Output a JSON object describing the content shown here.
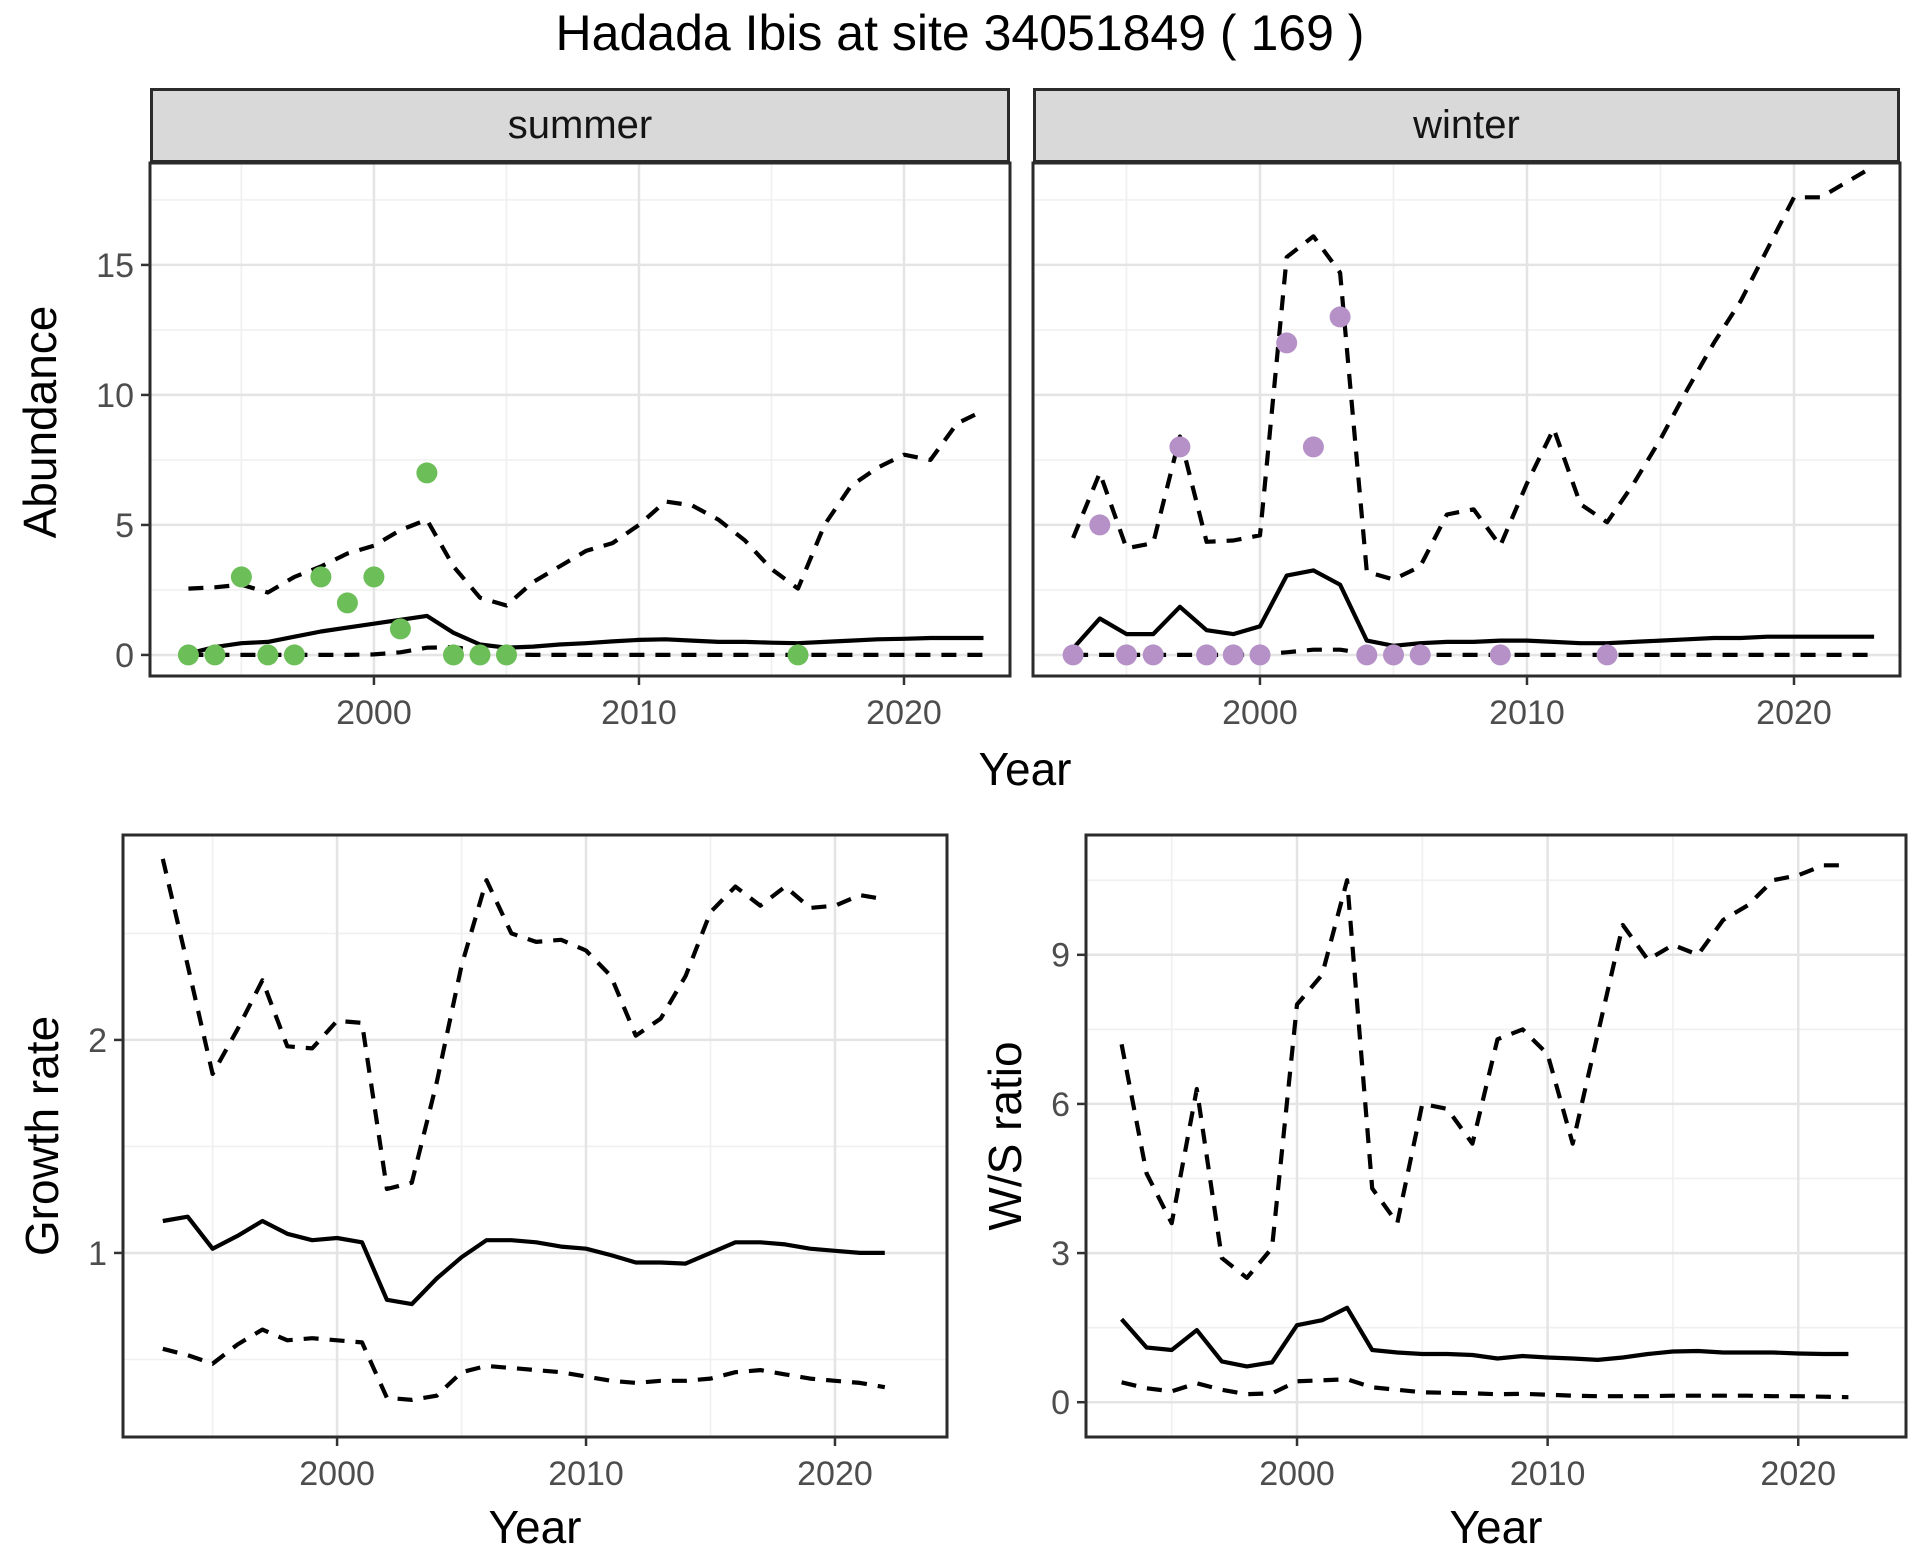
{
  "title": "Hadada Ibis at site 34051849 ( 169 )",
  "axis_titles": {
    "x": "Year",
    "y_abundance": "Abundance",
    "y_growth": "Growth rate",
    "y_ws": "W/S ratio"
  },
  "colors": {
    "summer_points": "#6CBE58",
    "winter_points": "#B591C7",
    "line": "#000000",
    "strip_fill": "#D9D9D9",
    "panel_border": "#2B2B2B",
    "tick_label": "#4D4D4D",
    "grid_major": "#E4E4E4",
    "grid_minor": "#F0F0F0"
  },
  "chart_data": {
    "type": "line",
    "title": "Hadada Ibis at site 34051849 ( 169 )",
    "xlabel": "Year",
    "legend": "none",
    "facets": [
      "summer",
      "winter"
    ],
    "panels": [
      {
        "id": "abundance-summer",
        "facet_label": "summer",
        "ylabel": "Abundance",
        "xlim": [
          1991.55,
          2024.0
        ],
        "ylim": [
          -0.81,
          18.92
        ],
        "x_major": [
          2000,
          2010,
          2020
        ],
        "x_minor": [
          1995,
          2005,
          2015
        ],
        "y_major": [
          0,
          5,
          10,
          15
        ],
        "y_minor": [
          2.5,
          7.5,
          12.5,
          17.5
        ],
        "show_y_tick_labels": true,
        "x": [
          1993,
          1994,
          1995,
          1996,
          1997,
          1998,
          1999,
          2000,
          2001,
          2002,
          2003,
          2004,
          2005,
          2006,
          2007,
          2008,
          2009,
          2010,
          2011,
          2012,
          2013,
          2014,
          2015,
          2016,
          2017,
          2018,
          2019,
          2020,
          2021,
          2022,
          2023
        ],
        "series": [
          {
            "name": "lower-ci",
            "style": "dashed",
            "values": [
              0,
              0,
              0,
              0,
              0,
              0,
              0,
              0.02,
              0.1,
              0.28,
              0.3,
              0.15,
              0.02,
              0,
              0,
              0,
              0,
              0,
              0,
              0,
              0,
              0,
              0,
              0,
              0,
              0,
              0,
              0,
              0,
              0,
              0
            ]
          },
          {
            "name": "median",
            "style": "solid",
            "values": [
              0.05,
              0.3,
              0.45,
              0.5,
              0.7,
              0.9,
              1.05,
              1.2,
              1.35,
              1.5,
              0.85,
              0.4,
              0.28,
              0.32,
              0.4,
              0.45,
              0.52,
              0.58,
              0.6,
              0.55,
              0.5,
              0.5,
              0.47,
              0.45,
              0.5,
              0.55,
              0.6,
              0.62,
              0.65,
              0.65,
              0.65
            ]
          },
          {
            "name": "upper-ci",
            "style": "dashed",
            "values": [
              2.55,
              2.6,
              2.7,
              2.4,
              3.0,
              3.4,
              3.9,
              4.2,
              4.8,
              5.2,
              3.4,
              2.2,
              1.9,
              2.8,
              3.4,
              4.0,
              4.3,
              5.0,
              5.9,
              5.75,
              5.2,
              4.4,
              3.3,
              2.55,
              5.0,
              6.5,
              7.2,
              7.7,
              7.5,
              8.9,
              9.4
            ]
          }
        ],
        "points": {
          "color_key": "summer_points",
          "x": [
            1993,
            1994,
            1995,
            1996,
            1997,
            1998,
            1999,
            2000,
            2001,
            2002,
            2003,
            2004,
            2005,
            2016
          ],
          "y": [
            0,
            0,
            3,
            0,
            0,
            3,
            2,
            3,
            1,
            7,
            0,
            0,
            0,
            0
          ]
        }
      },
      {
        "id": "abundance-winter",
        "facet_label": "winter",
        "ylabel": "Abundance",
        "xlim": [
          1991.5,
          2023.97
        ],
        "ylim": [
          -0.81,
          18.92
        ],
        "x_major": [
          2000,
          2010,
          2020
        ],
        "x_minor": [
          1995,
          2005,
          2015
        ],
        "y_major": [
          0,
          5,
          10,
          15
        ],
        "y_minor": [
          2.5,
          7.5,
          12.5,
          17.5
        ],
        "show_y_tick_labels": false,
        "x": [
          1993,
          1994,
          1995,
          1996,
          1997,
          1998,
          1999,
          2000,
          2001,
          2002,
          2003,
          2004,
          2005,
          2006,
          2007,
          2008,
          2009,
          2010,
          2011,
          2012,
          2013,
          2014,
          2015,
          2016,
          2017,
          2018,
          2019,
          2020,
          2021,
          2022,
          2023
        ],
        "series": [
          {
            "name": "lower-ci",
            "style": "dashed",
            "values": [
              0,
              0,
              0,
              0,
              0,
              0,
              0,
              0.02,
              0.1,
              0.2,
              0.2,
              0.05,
              0,
              0,
              0,
              0,
              0,
              0,
              0,
              0,
              0,
              0,
              0,
              0,
              0,
              0,
              0,
              0,
              0,
              0,
              0
            ]
          },
          {
            "name": "median",
            "style": "solid",
            "values": [
              0.25,
              1.4,
              0.8,
              0.8,
              1.85,
              0.95,
              0.8,
              1.1,
              3.05,
              3.25,
              2.7,
              0.55,
              0.35,
              0.45,
              0.5,
              0.5,
              0.55,
              0.55,
              0.5,
              0.45,
              0.45,
              0.5,
              0.55,
              0.6,
              0.65,
              0.65,
              0.7,
              0.7,
              0.7,
              0.7,
              0.7
            ]
          },
          {
            "name": "upper-ci",
            "style": "dashed",
            "values": [
              4.5,
              7.0,
              4.1,
              4.3,
              8.4,
              4.35,
              4.4,
              4.6,
              15.3,
              16.1,
              14.7,
              3.2,
              2.9,
              3.4,
              5.4,
              5.6,
              4.2,
              6.6,
              8.7,
              5.8,
              5.1,
              6.6,
              8.3,
              10.2,
              12.0,
              13.6,
              15.6,
              17.6,
              17.6,
              18.2,
              18.8
            ]
          }
        ],
        "points": {
          "color_key": "winter_points",
          "x": [
            1993,
            1994,
            1995,
            1996,
            1997,
            1998,
            1999,
            2000,
            2001,
            2002,
            2003,
            2004,
            2005,
            2006,
            2009,
            2013
          ],
          "y": [
            0,
            5,
            0,
            0,
            8,
            0,
            0,
            0,
            12,
            8,
            13,
            0,
            0,
            0,
            0,
            0
          ]
        }
      },
      {
        "id": "growth-rate",
        "facet_label": "",
        "ylabel": "Growth rate",
        "xlim": [
          1991.4,
          2024.5
        ],
        "ylim": [
          0.136,
          2.962
        ],
        "x_major": [
          2000,
          2010,
          2020
        ],
        "x_minor": [
          1995,
          2005,
          2015
        ],
        "y_major": [
          1,
          2
        ],
        "y_minor": [
          0.5,
          1.5,
          2.5
        ],
        "show_y_tick_labels": true,
        "x": [
          1993,
          1994,
          1995,
          1996,
          1997,
          1998,
          1999,
          2000,
          2001,
          2002,
          2003,
          2004,
          2005,
          2006,
          2007,
          2008,
          2009,
          2010,
          2011,
          2012,
          2013,
          2014,
          2015,
          2016,
          2017,
          2018,
          2019,
          2020,
          2021,
          2022
        ],
        "series": [
          {
            "name": "lower-ci",
            "style": "dashed",
            "values": [
              0.55,
              0.52,
              0.48,
              0.57,
              0.64,
              0.59,
              0.6,
              0.59,
              0.58,
              0.32,
              0.31,
              0.33,
              0.44,
              0.47,
              0.46,
              0.45,
              0.44,
              0.42,
              0.4,
              0.39,
              0.4,
              0.4,
              0.41,
              0.44,
              0.45,
              0.43,
              0.41,
              0.4,
              0.39,
              0.37
            ]
          },
          {
            "name": "median",
            "style": "solid",
            "values": [
              1.15,
              1.17,
              1.02,
              1.08,
              1.15,
              1.09,
              1.06,
              1.07,
              1.05,
              0.78,
              0.76,
              0.88,
              0.98,
              1.06,
              1.06,
              1.05,
              1.03,
              1.02,
              0.99,
              0.955,
              0.955,
              0.95,
              1.0,
              1.05,
              1.05,
              1.04,
              1.02,
              1.01,
              1.0,
              1.0
            ]
          },
          {
            "name": "upper-ci",
            "style": "dashed",
            "values": [
              2.85,
              2.35,
              1.84,
              2.05,
              2.28,
              1.97,
              1.96,
              2.09,
              2.08,
              1.3,
              1.33,
              1.8,
              2.35,
              2.75,
              2.5,
              2.46,
              2.47,
              2.42,
              2.3,
              2.02,
              2.1,
              2.3,
              2.6,
              2.72,
              2.63,
              2.72,
              2.62,
              2.63,
              2.68,
              2.66
            ]
          }
        ],
        "points": null
      },
      {
        "id": "ws-ratio",
        "facet_label": "",
        "ylabel": "W/S ratio",
        "xlim": [
          1991.58,
          2024.3
        ],
        "ylim": [
          -0.7,
          11.41
        ],
        "x_major": [
          2000,
          2010,
          2020
        ],
        "x_minor": [
          1995,
          2005,
          2015
        ],
        "y_major": [
          0,
          3,
          6,
          9
        ],
        "y_minor": [
          1.5,
          4.5,
          7.5,
          10.5
        ],
        "show_y_tick_labels": true,
        "x": [
          1993,
          1994,
          1995,
          1996,
          1997,
          1998,
          1999,
          2000,
          2001,
          2002,
          2003,
          2004,
          2005,
          2006,
          2007,
          2008,
          2009,
          2010,
          2011,
          2012,
          2013,
          2014,
          2015,
          2016,
          2017,
          2018,
          2019,
          2020,
          2021,
          2022
        ],
        "series": [
          {
            "name": "lower-ci",
            "style": "dashed",
            "values": [
              0.4,
              0.28,
              0.22,
              0.38,
              0.25,
              0.16,
              0.18,
              0.42,
              0.44,
              0.46,
              0.3,
              0.25,
              0.2,
              0.19,
              0.18,
              0.16,
              0.17,
              0.15,
              0.13,
              0.12,
              0.12,
              0.12,
              0.13,
              0.13,
              0.13,
              0.13,
              0.12,
              0.12,
              0.11,
              0.1
            ]
          },
          {
            "name": "median",
            "style": "solid",
            "values": [
              1.67,
              1.1,
              1.05,
              1.45,
              0.82,
              0.72,
              0.8,
              1.55,
              1.65,
              1.9,
              1.05,
              1.0,
              0.97,
              0.97,
              0.95,
              0.88,
              0.93,
              0.9,
              0.88,
              0.85,
              0.9,
              0.97,
              1.02,
              1.03,
              1.0,
              1.0,
              1.0,
              0.98,
              0.97,
              0.97
            ]
          },
          {
            "name": "upper-ci",
            "style": "dashed",
            "values": [
              7.2,
              4.6,
              3.6,
              6.3,
              2.9,
              2.5,
              3.1,
              8.0,
              8.6,
              10.5,
              4.3,
              3.6,
              6.0,
              5.9,
              5.2,
              7.3,
              7.5,
              7.0,
              5.2,
              7.4,
              9.6,
              8.9,
              9.2,
              9.0,
              9.7,
              10.0,
              10.5,
              10.6,
              10.8,
              10.8
            ]
          }
        ],
        "points": null
      }
    ]
  }
}
